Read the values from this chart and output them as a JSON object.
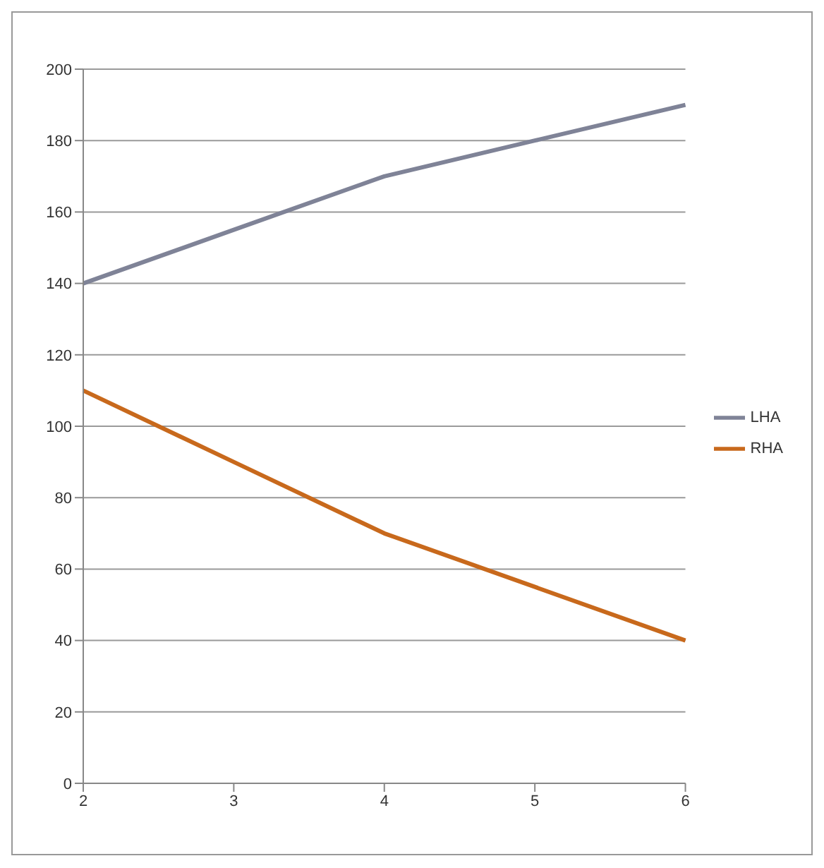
{
  "chart_data": {
    "type": "line",
    "categories": [
      "2",
      "3",
      "4",
      "5",
      "6"
    ],
    "series": [
      {
        "name": "LHA",
        "color": "#7f8397",
        "values": [
          140,
          155,
          170,
          180,
          190
        ]
      },
      {
        "name": "RHA",
        "color": "#c8691c",
        "values": [
          110,
          90,
          70,
          55,
          40
        ]
      }
    ],
    "ylim": [
      0,
      200
    ],
    "yticks": [
      0,
      20,
      40,
      60,
      80,
      100,
      120,
      140,
      160,
      180,
      200
    ],
    "grid": "y",
    "legend": "right",
    "marker": "none",
    "line_style": "solid"
  }
}
